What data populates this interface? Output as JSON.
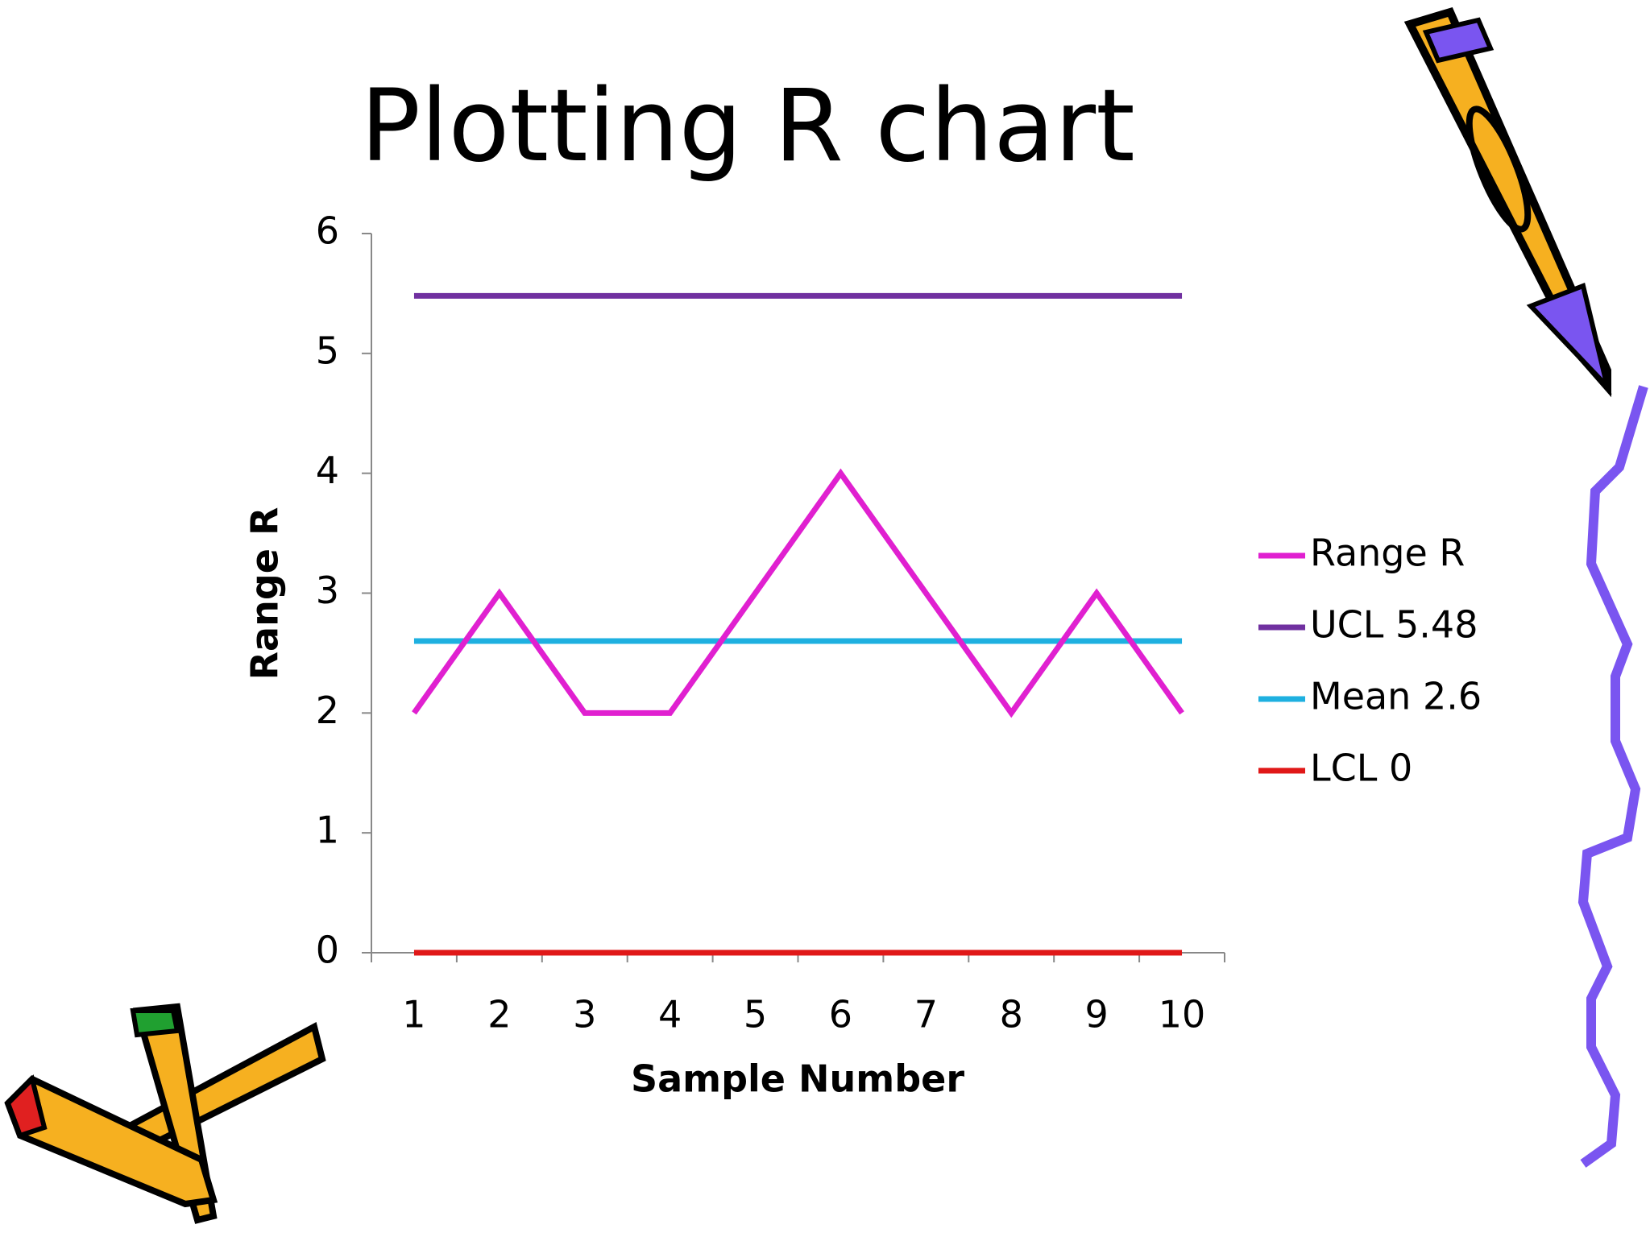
{
  "chart_data": {
    "type": "line",
    "title": "Plotting R chart",
    "x_label": "Sample Number",
    "y_label": "Range R",
    "categories": [
      "1",
      "2",
      "3",
      "4",
      "5",
      "6",
      "7",
      "8",
      "9",
      "10"
    ],
    "series": [
      {
        "name": "Range R",
        "color": "#e020d0",
        "values": [
          2,
          3,
          2,
          2,
          3,
          4,
          3,
          2,
          3,
          2
        ]
      },
      {
        "name": "UCL 5.48",
        "color": "#7030a0",
        "values": [
          5.48,
          5.48,
          5.48,
          5.48,
          5.48,
          5.48,
          5.48,
          5.48,
          5.48,
          5.48
        ]
      },
      {
        "name": "Mean 2.6",
        "color": "#1eb0e0",
        "values": [
          2.6,
          2.6,
          2.6,
          2.6,
          2.6,
          2.6,
          2.6,
          2.6,
          2.6,
          2.6
        ]
      },
      {
        "name": "LCL 0",
        "color": "#e01818",
        "values": [
          0,
          0,
          0,
          0,
          0,
          0,
          0,
          0,
          0,
          0
        ]
      }
    ],
    "ylim": [
      0,
      6
    ],
    "yticks": [
      0,
      1,
      2,
      3,
      4,
      5,
      6
    ],
    "grid": false,
    "legend": "right"
  }
}
